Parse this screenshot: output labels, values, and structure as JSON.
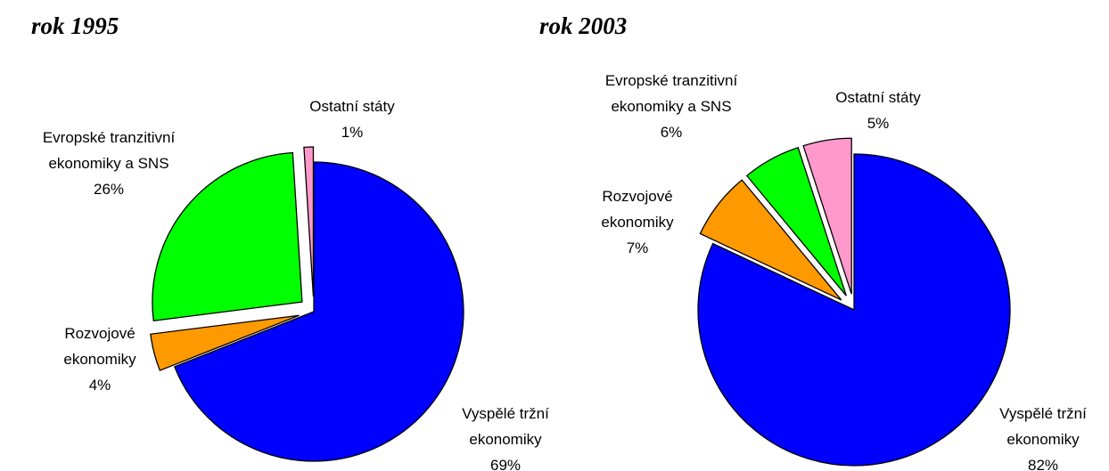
{
  "chart_data": [
    {
      "type": "pie",
      "title": "rok 1995",
      "categories": [
        "Vyspělé tržní\nekonomiky",
        "Rozvojové\nekonomiky",
        "Evropské tranzitivní\nekonomiky a SNS",
        "Ostatní státy"
      ],
      "values": [
        69,
        4,
        26,
        1
      ],
      "value_labels": [
        "69%",
        "4%",
        "26%",
        "1%"
      ],
      "colors": [
        "#0000ff",
        "#ff9900",
        "#00ff00",
        "#ff99cc"
      ]
    },
    {
      "type": "pie",
      "title": "rok 2003",
      "categories": [
        "Vyspělé tržní\nekonomiky",
        "Rozvojové\nekonomiky",
        "Evropské tranzitivní\nekonomiky a SNS",
        "Ostatní státy"
      ],
      "values": [
        82,
        7,
        6,
        5
      ],
      "value_labels": [
        "82%",
        "7%",
        "6%",
        "5%"
      ],
      "colors": [
        "#0000ff",
        "#ff9900",
        "#00ff00",
        "#ff99cc"
      ]
    }
  ]
}
